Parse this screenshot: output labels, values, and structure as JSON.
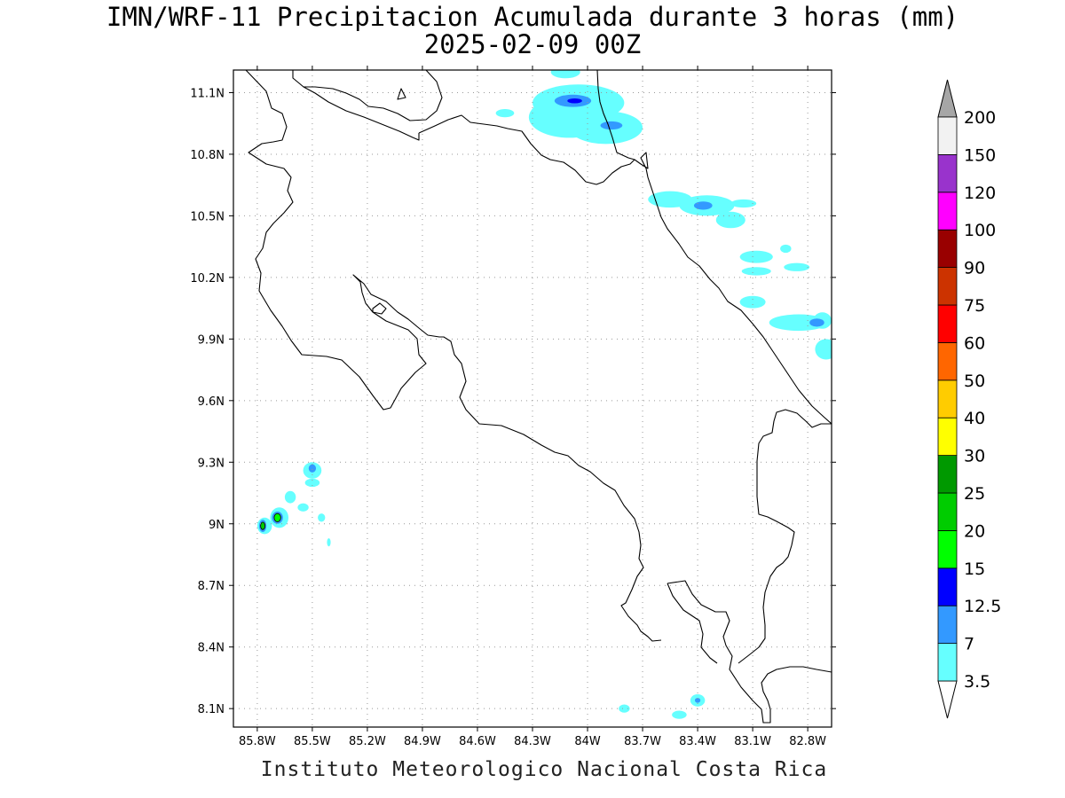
{
  "header": {
    "title": "IMN/WRF-11 Precipitacion Acumulada durante 3 horas (mm)",
    "subtitle": "2025-02-09 00Z"
  },
  "footer": {
    "credit": "Instituto Meteorologico Nacional Costa Rica"
  },
  "map": {
    "lon_range": [
      -85.93,
      -82.67
    ],
    "lat_range": [
      8.01,
      11.21
    ],
    "x_ticks": [
      {
        "value": -85.8,
        "label": "85.8W"
      },
      {
        "value": -85.5,
        "label": "85.5W"
      },
      {
        "value": -85.2,
        "label": "85.2W"
      },
      {
        "value": -84.9,
        "label": "84.9W"
      },
      {
        "value": -84.6,
        "label": "84.6W"
      },
      {
        "value": -84.3,
        "label": "84.3W"
      },
      {
        "value": -84.0,
        "label": "84W"
      },
      {
        "value": -83.7,
        "label": "83.7W"
      },
      {
        "value": -83.4,
        "label": "83.4W"
      },
      {
        "value": -83.1,
        "label": "83.1W"
      },
      {
        "value": -82.8,
        "label": "82.8W"
      }
    ],
    "y_ticks": [
      {
        "value": 11.1,
        "label": "11.1N"
      },
      {
        "value": 10.8,
        "label": "10.8N"
      },
      {
        "value": 10.5,
        "label": "10.5N"
      },
      {
        "value": 10.2,
        "label": "10.2N"
      },
      {
        "value": 9.9,
        "label": "9.9N"
      },
      {
        "value": 9.6,
        "label": "9.6N"
      },
      {
        "value": 9.3,
        "label": "9.3N"
      },
      {
        "value": 9.0,
        "label": "9N"
      },
      {
        "value": 8.7,
        "label": "8.7N"
      },
      {
        "value": 8.4,
        "label": "8.4N"
      },
      {
        "value": 8.1,
        "label": "8.1N"
      }
    ],
    "grid": "dotted"
  },
  "colorbar": {
    "units": "mm",
    "levels": [
      {
        "label": "3.5",
        "color": "#66ffff"
      },
      {
        "label": "7",
        "color": "#3399ff"
      },
      {
        "label": "12.5",
        "color": "#0000ff"
      },
      {
        "label": "15",
        "color": "#00ff00"
      },
      {
        "label": "20",
        "color": "#00cc00"
      },
      {
        "label": "25",
        "color": "#009900"
      },
      {
        "label": "30",
        "color": "#ffff00"
      },
      {
        "label": "40",
        "color": "#ffcc00"
      },
      {
        "label": "50",
        "color": "#ff6600"
      },
      {
        "label": "60",
        "color": "#ff0000"
      },
      {
        "label": "75",
        "color": "#cc3300"
      },
      {
        "label": "90",
        "color": "#990000"
      },
      {
        "label": "100",
        "color": "#ff00ff"
      },
      {
        "label": "120",
        "color": "#9933cc"
      },
      {
        "label": "150",
        "color": "#f2f2f2"
      },
      {
        "label": "200",
        "color": "#a6a6a6"
      }
    ]
  },
  "precipitation_cells": [
    {
      "lon": -84.05,
      "lat": 11.05,
      "rx": 0.25,
      "ry": 0.09,
      "level": 0
    },
    {
      "lon": -83.9,
      "lat": 10.93,
      "rx": 0.2,
      "ry": 0.08,
      "level": 0
    },
    {
      "lon": -84.1,
      "lat": 10.98,
      "rx": 0.22,
      "ry": 0.1,
      "level": 0
    },
    {
      "lon": -84.12,
      "lat": 11.2,
      "rx": 0.08,
      "ry": 0.03,
      "level": 0
    },
    {
      "lon": -84.45,
      "lat": 11.0,
      "rx": 0.05,
      "ry": 0.02,
      "level": 0
    },
    {
      "lon": -83.55,
      "lat": 10.58,
      "rx": 0.12,
      "ry": 0.04,
      "level": 0
    },
    {
      "lon": -83.35,
      "lat": 10.55,
      "rx": 0.15,
      "ry": 0.05,
      "level": 0
    },
    {
      "lon": -83.22,
      "lat": 10.48,
      "rx": 0.08,
      "ry": 0.04,
      "level": 0
    },
    {
      "lon": -83.15,
      "lat": 10.56,
      "rx": 0.07,
      "ry": 0.02,
      "level": 0
    },
    {
      "lon": -83.08,
      "lat": 10.3,
      "rx": 0.09,
      "ry": 0.03,
      "level": 0
    },
    {
      "lon": -83.08,
      "lat": 10.23,
      "rx": 0.08,
      "ry": 0.02,
      "level": 0
    },
    {
      "lon": -82.86,
      "lat": 10.25,
      "rx": 0.07,
      "ry": 0.02,
      "level": 0
    },
    {
      "lon": -82.92,
      "lat": 10.34,
      "rx": 0.03,
      "ry": 0.02,
      "level": 0
    },
    {
      "lon": -83.1,
      "lat": 10.08,
      "rx": 0.07,
      "ry": 0.03,
      "level": 0
    },
    {
      "lon": -82.85,
      "lat": 9.98,
      "rx": 0.16,
      "ry": 0.04,
      "level": 0
    },
    {
      "lon": -82.72,
      "lat": 9.99,
      "rx": 0.05,
      "ry": 0.04,
      "level": 0
    },
    {
      "lon": -82.7,
      "lat": 9.85,
      "rx": 0.06,
      "ry": 0.05,
      "level": 0
    },
    {
      "lon": -85.5,
      "lat": 9.26,
      "rx": 0.05,
      "ry": 0.04,
      "level": 0
    },
    {
      "lon": -85.5,
      "lat": 9.2,
      "rx": 0.04,
      "ry": 0.02,
      "level": 0
    },
    {
      "lon": -85.68,
      "lat": 9.03,
      "rx": 0.05,
      "ry": 0.05,
      "level": 0
    },
    {
      "lon": -85.76,
      "lat": 8.99,
      "rx": 0.04,
      "ry": 0.04,
      "level": 0
    },
    {
      "lon": -85.62,
      "lat": 9.13,
      "rx": 0.03,
      "ry": 0.03,
      "level": 0
    },
    {
      "lon": -85.55,
      "lat": 9.08,
      "rx": 0.03,
      "ry": 0.02,
      "level": 0
    },
    {
      "lon": -85.45,
      "lat": 9.03,
      "rx": 0.02,
      "ry": 0.02,
      "level": 0
    },
    {
      "lon": -85.41,
      "lat": 8.91,
      "rx": 0.01,
      "ry": 0.02,
      "level": 0
    },
    {
      "lon": -83.4,
      "lat": 8.14,
      "rx": 0.04,
      "ry": 0.03,
      "level": 0
    },
    {
      "lon": -83.5,
      "lat": 8.07,
      "rx": 0.04,
      "ry": 0.02,
      "level": 0
    },
    {
      "lon": -83.8,
      "lat": 8.1,
      "rx": 0.03,
      "ry": 0.02,
      "level": 0
    },
    {
      "lon": -84.08,
      "lat": 11.06,
      "rx": 0.1,
      "ry": 0.03,
      "level": 1
    },
    {
      "lon": -83.87,
      "lat": 10.94,
      "rx": 0.06,
      "ry": 0.02,
      "level": 1
    },
    {
      "lon": -83.37,
      "lat": 10.55,
      "rx": 0.05,
      "ry": 0.02,
      "level": 1
    },
    {
      "lon": -82.75,
      "lat": 9.98,
      "rx": 0.04,
      "ry": 0.02,
      "level": 1
    },
    {
      "lon": -85.5,
      "lat": 9.27,
      "rx": 0.02,
      "ry": 0.02,
      "level": 1
    },
    {
      "lon": -85.69,
      "lat": 9.03,
      "rx": 0.03,
      "ry": 0.03,
      "level": 1
    },
    {
      "lon": -85.77,
      "lat": 8.99,
      "rx": 0.02,
      "ry": 0.03,
      "level": 1
    },
    {
      "lon": -83.4,
      "lat": 8.14,
      "rx": 0.015,
      "ry": 0.012,
      "level": 1
    },
    {
      "lon": -84.07,
      "lat": 11.06,
      "rx": 0.04,
      "ry": 0.012,
      "level": 2
    },
    {
      "lon": -85.69,
      "lat": 9.03,
      "rx": 0.018,
      "ry": 0.02,
      "level": 3
    },
    {
      "lon": -85.77,
      "lat": 8.99,
      "rx": 0.012,
      "ry": 0.018,
      "level": 4
    }
  ]
}
